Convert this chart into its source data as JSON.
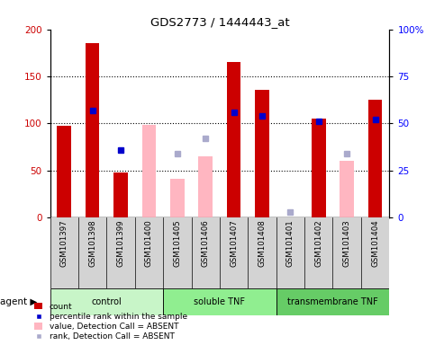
{
  "title": "GDS2773 / 1444443_at",
  "samples": [
    "GSM101397",
    "GSM101398",
    "GSM101399",
    "GSM101400",
    "GSM101405",
    "GSM101406",
    "GSM101407",
    "GSM101408",
    "GSM101401",
    "GSM101402",
    "GSM101403",
    "GSM101404"
  ],
  "groups": [
    {
      "label": "control",
      "start": 0,
      "end": 4
    },
    {
      "label": "soluble TNF",
      "start": 4,
      "end": 8
    },
    {
      "label": "transmembrane TNF",
      "start": 8,
      "end": 12
    }
  ],
  "red_bars": [
    97,
    185,
    48,
    null,
    null,
    null,
    165,
    136,
    null,
    105,
    null,
    125
  ],
  "pink_bars": [
    null,
    null,
    null,
    98,
    41,
    65,
    null,
    null,
    null,
    null,
    60,
    null
  ],
  "blue_squares_pct": [
    null,
    57,
    36,
    null,
    null,
    null,
    56,
    54,
    null,
    51,
    null,
    52
  ],
  "light_blue_squares_pct": [
    null,
    null,
    null,
    null,
    34,
    42,
    null,
    null,
    3,
    null,
    34,
    null
  ],
  "ylim_left": [
    0,
    200
  ],
  "ylim_right": [
    0,
    100
  ],
  "yticks_left": [
    0,
    50,
    100,
    150,
    200
  ],
  "yticks_right": [
    0,
    25,
    50,
    75,
    100
  ],
  "ytick_labels_right": [
    "0",
    "25",
    "50",
    "75",
    "100%"
  ],
  "red_color": "#cc0000",
  "pink_color": "#ffb6c1",
  "blue_color": "#0000cc",
  "light_blue_color": "#aaaacc",
  "group_colors": [
    "#c8f5c8",
    "#7cda7c",
    "#55cc55"
  ],
  "group_box_colors": [
    "#c8f5c8",
    "#90ee90",
    "#66cc66"
  ]
}
